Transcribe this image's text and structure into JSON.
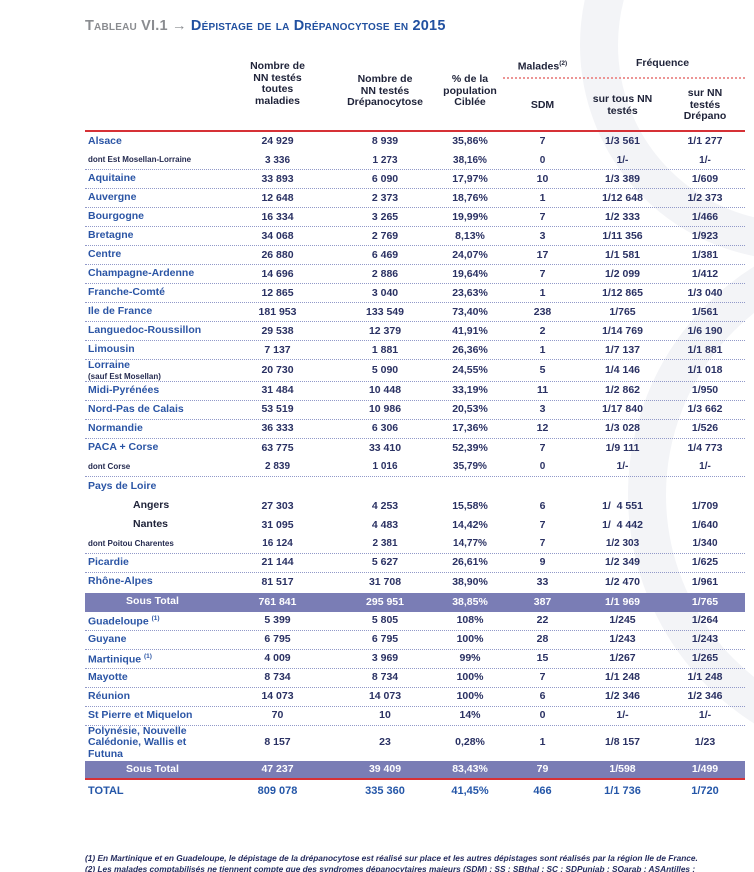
{
  "title": {
    "prefix": "Tableau VI.1",
    "arrow": "→",
    "text": "Dépistage de la Drépanocytose en 2015"
  },
  "colors": {
    "title_blue": "#2150a0",
    "region_blue": "#2b55a5",
    "value_navy": "#2a3163",
    "subtotal_purple": "#7a7db5",
    "red_rule": "#d63136"
  },
  "table": {
    "header": {
      "col_tested_all": "Nombre de\nNN testés\ntoutes\nmaladies",
      "col_tested_drep": "Nombre de\nNN testés\nDrépanocytose",
      "col_pct": "% de la\npopulation\nCiblée",
      "malades": "Malades",
      "malades_sup": "(2)",
      "sdm": "SDM",
      "frequence": "Fréquence",
      "freq_all": "sur tous NN\ntestés",
      "freq_drep": "sur NN\ntestés\nDrépano"
    },
    "rows": [
      {
        "label": "Alsace",
        "type": "region",
        "sep": false,
        "values": [
          "24 929",
          "8 939",
          "35,86%",
          "7",
          "1/3 561",
          "1/1 277"
        ]
      },
      {
        "label": "dont Est Mosellan-Lorraine",
        "type": "dont",
        "sep": true,
        "values": [
          "3 336",
          "1 273",
          "38,16%",
          "0",
          "1/-",
          "1/-"
        ]
      },
      {
        "label": "Aquitaine",
        "type": "region",
        "sep": true,
        "values": [
          "33 893",
          "6 090",
          "17,97%",
          "10",
          "1/3 389",
          "1/609"
        ]
      },
      {
        "label": "Auvergne",
        "type": "region",
        "sep": true,
        "values": [
          "12 648",
          "2 373",
          "18,76%",
          "1",
          "1/12 648",
          "1/2 373"
        ]
      },
      {
        "label": "Bourgogne",
        "type": "region",
        "sep": true,
        "values": [
          "16 334",
          "3 265",
          "19,99%",
          "7",
          "1/2 333",
          "1/466"
        ]
      },
      {
        "label": "Bretagne",
        "type": "region",
        "sep": true,
        "values": [
          "34 068",
          "2 769",
          "8,13%",
          "3",
          "1/11 356",
          "1/923"
        ]
      },
      {
        "label": "Centre",
        "type": "region",
        "sep": true,
        "values": [
          "26 880",
          "6 469",
          "24,07%",
          "17",
          "1/1 581",
          "1/381"
        ]
      },
      {
        "label": "Champagne-Ardenne",
        "type": "region",
        "sep": true,
        "values": [
          "14 696",
          "2 886",
          "19,64%",
          "7",
          "1/2 099",
          "1/412"
        ]
      },
      {
        "label": "Franche-Comté",
        "type": "region",
        "sep": true,
        "values": [
          "12 865",
          "3 040",
          "23,63%",
          "1",
          "1/12 865",
          "1/3 040"
        ]
      },
      {
        "label": "Ile de France",
        "type": "region",
        "sep": true,
        "values": [
          "181 953",
          "133 549",
          "73,40%",
          "238",
          "1/765",
          "1/561"
        ]
      },
      {
        "label": "Languedoc-Roussillon",
        "type": "region",
        "sep": true,
        "values": [
          "29 538",
          "12 379",
          "41,91%",
          "2",
          "1/14 769",
          "1/6 190"
        ]
      },
      {
        "label": "Limousin",
        "type": "region",
        "sep": true,
        "values": [
          "7 137",
          "1 881",
          "26,36%",
          "1",
          "1/7 137",
          "1/1 881"
        ]
      },
      {
        "label": "Lorraine",
        "sublabel": "(sauf Est Mosellan)",
        "type": "region",
        "sep": true,
        "values": [
          "20 730",
          "5 090",
          "24,55%",
          "5",
          "1/4 146",
          "1/1 018"
        ]
      },
      {
        "label": "Midi-Pyrénées",
        "type": "region",
        "sep": true,
        "values": [
          "31 484",
          "10 448",
          "33,19%",
          "11",
          "1/2 862",
          "1/950"
        ]
      },
      {
        "label": "Nord-Pas de Calais",
        "type": "region",
        "sep": true,
        "values": [
          "53 519",
          "10 986",
          "20,53%",
          "3",
          "1/17 840",
          "1/3 662"
        ]
      },
      {
        "label": "Normandie",
        "type": "region",
        "sep": true,
        "values": [
          "36 333",
          "6 306",
          "17,36%",
          "12",
          "1/3 028",
          "1/526"
        ]
      },
      {
        "label": "PACA + Corse",
        "type": "region",
        "sep": false,
        "values": [
          "63 775",
          "33 410",
          "52,39%",
          "7",
          "1/9 111",
          "1/4 773"
        ]
      },
      {
        "label": "dont Corse",
        "type": "dont",
        "sep": true,
        "values": [
          "2 839",
          "1 016",
          "35,79%",
          "0",
          "1/-",
          "1/-"
        ]
      },
      {
        "label": "Pays de Loire",
        "type": "group",
        "sep": false,
        "values": []
      },
      {
        "label": "Angers",
        "type": "indent",
        "sep": false,
        "values": [
          "27 303",
          "4 253",
          "15,58%",
          "6",
          "1/  4 551",
          "1/709"
        ]
      },
      {
        "label": "Nantes",
        "type": "indent",
        "sep": false,
        "values": [
          "31 095",
          "4 483",
          "14,42%",
          "7",
          "1/  4 442",
          "1/640"
        ]
      },
      {
        "label": "dont Poitou Charentes",
        "type": "dont",
        "sep": true,
        "values": [
          "16 124",
          "2 381",
          "14,77%",
          "7",
          "1/2 303",
          "1/340"
        ]
      },
      {
        "label": "Picardie",
        "type": "region",
        "sep": true,
        "values": [
          "21 144",
          "5 627",
          "26,61%",
          "9",
          "1/2 349",
          "1/625"
        ]
      },
      {
        "label": "Rhône-Alpes",
        "type": "region",
        "sep": false,
        "values": [
          "81 517",
          "31 708",
          "38,90%",
          "33",
          "1/2 470",
          "1/961"
        ]
      },
      {
        "label": "Sous Total",
        "type": "subtotal",
        "sep": false,
        "values": [
          "761 841",
          "295 951",
          "38,85%",
          "387",
          "1/1 969",
          "1/765"
        ]
      },
      {
        "label": "Guadeloupe",
        "sup": "(1)",
        "type": "region",
        "sep": true,
        "values": [
          "5 399",
          "5 805",
          "108%",
          "22",
          "1/245",
          "1/264"
        ]
      },
      {
        "label": "Guyane",
        "type": "region",
        "sep": true,
        "values": [
          "6 795",
          "6 795",
          "100%",
          "28",
          "1/243",
          "1/243"
        ]
      },
      {
        "label": "Martinique",
        "sup": "(1)",
        "type": "region",
        "sep": true,
        "values": [
          "4 009",
          "3 969",
          "99%",
          "15",
          "1/267",
          "1/265"
        ]
      },
      {
        "label": "Mayotte",
        "type": "region",
        "sep": true,
        "values": [
          "8 734",
          "8 734",
          "100%",
          "7",
          "1/1 248",
          "1/1 248"
        ]
      },
      {
        "label": "Réunion",
        "type": "region",
        "sep": true,
        "values": [
          "14 073",
          "14 073",
          "100%",
          "6",
          "1/2 346",
          "1/2 346"
        ]
      },
      {
        "label": "St Pierre et Miquelon",
        "type": "region",
        "sep": true,
        "values": [
          "70",
          "10",
          "14%",
          "0",
          "1/-",
          "1/-"
        ]
      },
      {
        "label": "Polynésie, Nouvelle Calédonie, Wallis et Futuna",
        "type": "region",
        "sep": false,
        "values": [
          "8 157",
          "23",
          "0,28%",
          "1",
          "1/8 157",
          "1/23"
        ]
      },
      {
        "label": "Sous Total",
        "type": "subtotal",
        "redbelow": true,
        "sep": false,
        "values": [
          "47 237",
          "39 409",
          "83,43%",
          "79",
          "1/598",
          "1/499"
        ]
      },
      {
        "label": "TOTAL",
        "type": "total",
        "sep": false,
        "values": [
          "809 078",
          "335 360",
          "41,45%",
          "466",
          "1/1 736",
          "1/720"
        ]
      }
    ]
  },
  "footnotes": [
    "(1) En Martinique et en Guadeloupe, le dépistage de la drépanocytose est réalisé sur place et les autres dépistages sont réalisés par la région Ile de France.",
    "(2) Les malades comptabilisés ne tiennent compte que des syndromes dépanocytaires majeurs (SDM) : SS ; SBthal ; SC ; SDPunjab ; SOarab ; ASAntilles ;"
  ]
}
